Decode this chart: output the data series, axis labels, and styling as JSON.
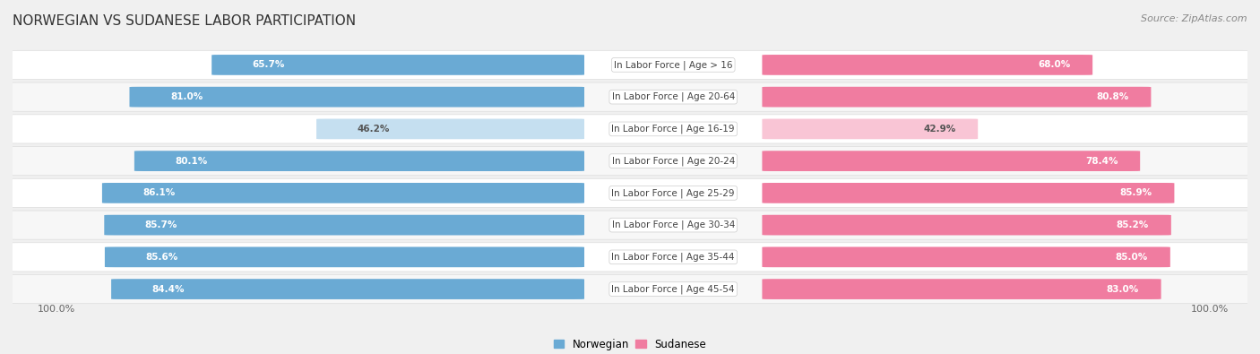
{
  "title": "NORWEGIAN VS SUDANESE LABOR PARTICIPATION",
  "source": "Source: ZipAtlas.com",
  "categories": [
    "In Labor Force | Age > 16",
    "In Labor Force | Age 20-64",
    "In Labor Force | Age 16-19",
    "In Labor Force | Age 20-24",
    "In Labor Force | Age 25-29",
    "In Labor Force | Age 30-34",
    "In Labor Force | Age 35-44",
    "In Labor Force | Age 45-54"
  ],
  "norwegian_values": [
    65.7,
    81.0,
    46.2,
    80.1,
    86.1,
    85.7,
    85.6,
    84.4
  ],
  "sudanese_values": [
    68.0,
    80.8,
    42.9,
    78.4,
    85.9,
    85.2,
    85.0,
    83.0
  ],
  "norwegian_color_full": "#6aaad4",
  "norwegian_color_light": "#c5dff0",
  "sudanese_color_full": "#f07ca0",
  "sudanese_color_light": "#f9c5d5",
  "bar_height": 0.62,
  "background_color": "#f0f0f0",
  "row_bg_color_odd": "#f7f7f7",
  "row_bg_color_even": "#ffffff",
  "title_fontsize": 11,
  "source_fontsize": 8,
  "label_fontsize": 7.5,
  "value_fontsize": 7.5,
  "x_label": "100.0%",
  "legend_norwegian": "Norwegian",
  "legend_sudanese": "Sudanese"
}
